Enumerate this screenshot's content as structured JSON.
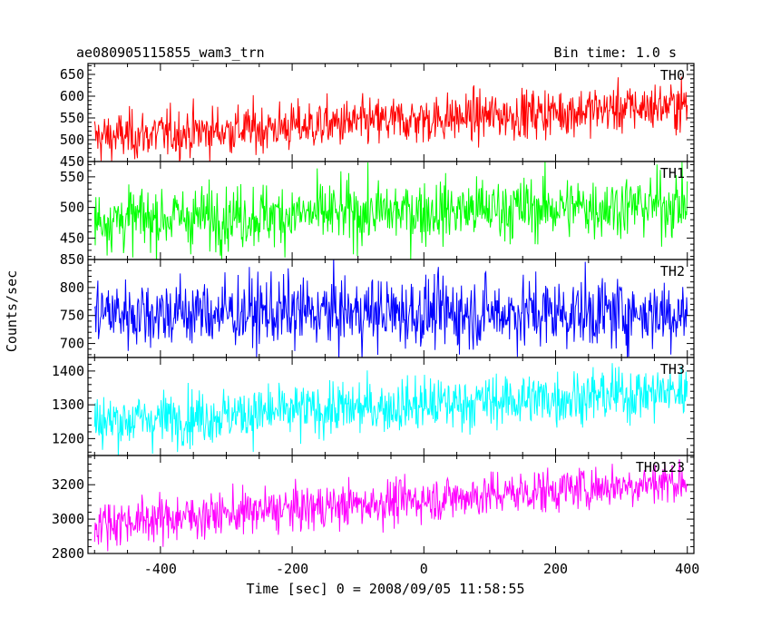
{
  "chart_data": {
    "type": "line",
    "title_left": "ae080905115855_wam3_trn",
    "title_right": "Bin time: 1.0 s",
    "xlabel": "Time [sec] 0 = 2008/09/05 11:58:55",
    "ylabel": "Counts/sec",
    "xlim": [
      -510,
      410
    ],
    "x_ticks": [
      -400,
      -200,
      0,
      200,
      400
    ],
    "grid": false,
    "panels": [
      {
        "name": "TH0",
        "color": "#ff0000",
        "ylim": [
          450,
          675
        ],
        "y_ticks": [
          450,
          500,
          550,
          600,
          650
        ],
        "trend_start": 505,
        "trend_end": 580,
        "noise": 28,
        "x_range": [
          -500,
          400
        ]
      },
      {
        "name": "TH1",
        "color": "#00ff00",
        "ylim": [
          415,
          575
        ],
        "y_ticks": [
          450,
          500,
          550
        ],
        "trend_start": 480,
        "trend_end": 505,
        "noise": 26,
        "x_range": [
          -500,
          400
        ]
      },
      {
        "name": "TH2",
        "color": "#0000ff",
        "ylim": [
          675,
          850
        ],
        "y_ticks": [
          700,
          750,
          800,
          850
        ],
        "trend_start": 755,
        "trend_end": 755,
        "noise": 32,
        "x_range": [
          -500,
          400
        ]
      },
      {
        "name": "TH3",
        "color": "#00ffff",
        "ylim": [
          1150,
          1440
        ],
        "y_ticks": [
          1200,
          1300,
          1400
        ],
        "trend_start": 1250,
        "trend_end": 1340,
        "noise": 40,
        "x_range": [
          -500,
          400
        ]
      },
      {
        "name": "TH0123",
        "color": "#ff00ff",
        "ylim": [
          2800,
          3370
        ],
        "y_ticks": [
          2800,
          3000,
          3200
        ],
        "trend_start": 2975,
        "trend_end": 3225,
        "noise": 65,
        "x_range": [
          -500,
          400
        ]
      }
    ]
  }
}
